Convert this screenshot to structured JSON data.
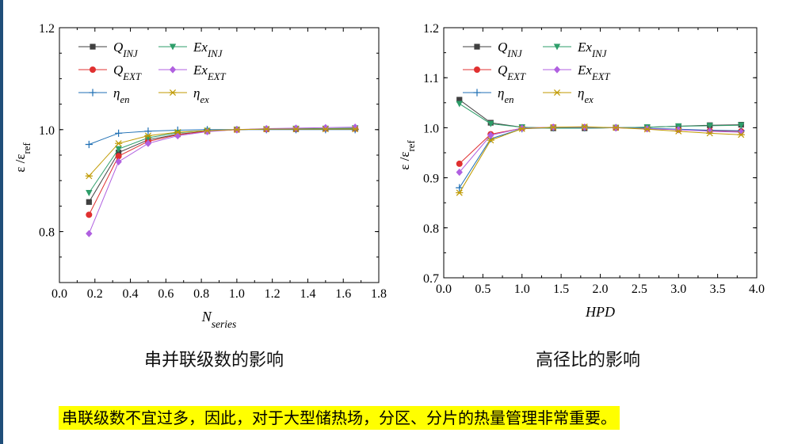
{
  "chart_data": [
    {
      "type": "line",
      "xlabel": {
        "main": "N",
        "sub": "series"
      },
      "ylabel": {
        "main": "ε /ε",
        "sub": "ref"
      },
      "xlim": [
        0.0,
        1.8
      ],
      "ylim": [
        0.7,
        1.2
      ],
      "xticks": [
        "0.0",
        "0.2",
        "0.4",
        "0.6",
        "0.8",
        "1.0",
        "1.2",
        "1.4",
        "1.6",
        "1.8"
      ],
      "yticks": [
        "0.8",
        "1.0",
        "1.2"
      ],
      "ytick_values": [
        0.8,
        1.0,
        1.2
      ],
      "x": [
        0.1667,
        0.3333,
        0.5,
        0.6667,
        0.8333,
        1.0,
        1.1667,
        1.3333,
        1.5,
        1.6667
      ],
      "series": [
        {
          "main": "Q",
          "sub": "INJ",
          "color": "#404040",
          "marker": "square",
          "values": [
            0.858,
            0.955,
            0.98,
            0.991,
            0.997,
            1.0,
            1.001,
            1.001,
            1.002,
            1.002
          ]
        },
        {
          "main": "Q",
          "sub": "EXT",
          "color": "#e03030",
          "marker": "circle",
          "values": [
            0.833,
            0.948,
            0.977,
            0.99,
            0.997,
            1.0,
            1.001,
            1.002,
            1.002,
            1.002
          ]
        },
        {
          "main": "η",
          "sub": "en",
          "color": "#1f6fb4",
          "marker": "plus",
          "values": [
            0.971,
            0.993,
            0.997,
            0.999,
            1.0,
            1.0,
            1.0,
            1.0,
            1.0,
            1.0
          ]
        },
        {
          "main": "Ex",
          "sub": "INJ",
          "color": "#2e9e6a",
          "marker": "triangle-down",
          "values": [
            0.876,
            0.962,
            0.984,
            0.994,
            0.998,
            1.0,
            1.001,
            1.002,
            1.002,
            1.003
          ]
        },
        {
          "main": "Ex",
          "sub": "EXT",
          "color": "#b060e0",
          "marker": "diamond",
          "values": [
            0.796,
            0.937,
            0.973,
            0.988,
            0.996,
            1.0,
            1.002,
            1.003,
            1.004,
            1.005
          ]
        },
        {
          "main": "η",
          "sub": "ex",
          "color": "#c09a00",
          "marker": "asterisk",
          "values": [
            0.909,
            0.973,
            0.988,
            0.995,
            0.998,
            1.0,
            1.001,
            1.001,
            1.001,
            1.001
          ]
        }
      ]
    },
    {
      "type": "line",
      "xlabel": {
        "main": "HPD",
        "sub": ""
      },
      "ylabel": {
        "main": "ε /ε",
        "sub": "ref"
      },
      "xlim": [
        0.0,
        4.0
      ],
      "ylim": [
        0.7,
        1.2
      ],
      "xticks": [
        "0.0",
        "0.5",
        "1.0",
        "1.5",
        "2.0",
        "2.5",
        "3.0",
        "3.5",
        "4.0"
      ],
      "yticks": [
        "0.7",
        "0.8",
        "0.9",
        "1.0",
        "1.1",
        "1.2"
      ],
      "ytick_values": [
        0.7,
        0.8,
        0.9,
        1.0,
        1.1,
        1.2
      ],
      "x": [
        0.2,
        0.6,
        1.0,
        1.4,
        1.8,
        2.2,
        2.6,
        3.0,
        3.4,
        3.8
      ],
      "series": [
        {
          "main": "Q",
          "sub": "INJ",
          "color": "#404040",
          "marker": "square",
          "values": [
            1.056,
            1.01,
            1.001,
            0.999,
            0.999,
            1.0,
            1.001,
            1.003,
            1.005,
            1.006
          ]
        },
        {
          "main": "Q",
          "sub": "EXT",
          "color": "#e03030",
          "marker": "circle",
          "values": [
            0.928,
            0.987,
            0.999,
            1.001,
            1.001,
            1.0,
            0.998,
            0.996,
            0.994,
            0.993
          ]
        },
        {
          "main": "η",
          "sub": "en",
          "color": "#1f6fb4",
          "marker": "plus",
          "values": [
            0.88,
            0.978,
            0.998,
            1.0,
            1.0,
            1.0,
            0.999,
            0.997,
            0.995,
            0.994
          ]
        },
        {
          "main": "Ex",
          "sub": "INJ",
          "color": "#2e9e6a",
          "marker": "triangle-down",
          "values": [
            1.048,
            1.008,
            1.001,
            0.999,
            0.999,
            1.0,
            1.001,
            1.003,
            1.004,
            1.005
          ]
        },
        {
          "main": "Ex",
          "sub": "EXT",
          "color": "#b060e0",
          "marker": "diamond",
          "values": [
            0.911,
            0.985,
            0.999,
            1.001,
            1.001,
            1.0,
            0.998,
            0.996,
            0.993,
            0.991
          ]
        },
        {
          "main": "η",
          "sub": "ex",
          "color": "#c09a00",
          "marker": "asterisk",
          "values": [
            0.87,
            0.975,
            0.998,
            1.001,
            1.002,
            1.0,
            0.997,
            0.993,
            0.989,
            0.986
          ]
        }
      ]
    }
  ],
  "captions": {
    "left": "串并联级数的影响",
    "right": "高径比的影响"
  },
  "note": "串联级数不宜过多，因此，对于大型储热场，分区、分片的热量管理非常重要。"
}
